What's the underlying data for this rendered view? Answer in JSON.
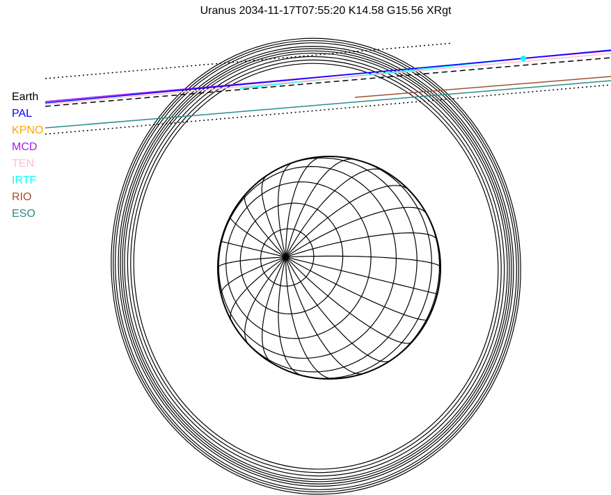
{
  "title": "Uranus 2034-11-17T07:55:20  K14.58  G15.56 XRgt",
  "legend": [
    {
      "label": "Earth",
      "color": "#000000"
    },
    {
      "label": "PAL",
      "color": "#0000ff"
    },
    {
      "label": "KPNO",
      "color": "#ffa500"
    },
    {
      "label": "MCD",
      "color": "#a020f0"
    },
    {
      "label": "TEN",
      "color": "#ffc0cb"
    },
    {
      "label": "IRTF",
      "color": "#00ffff"
    },
    {
      "label": "RIO",
      "color": "#a0522d"
    },
    {
      "label": "ESO",
      "color": "#2e8b8b"
    }
  ]
}
